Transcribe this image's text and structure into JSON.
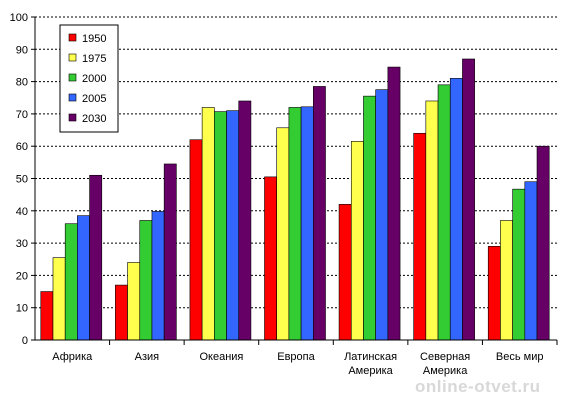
{
  "chart_data": {
    "type": "bar",
    "categories": [
      [
        "Африка"
      ],
      [
        "Азия"
      ],
      [
        "Океания"
      ],
      [
        "Европа"
      ],
      [
        "Латинская",
        "Америка"
      ],
      [
        "Северная",
        "Америка"
      ],
      [
        "Весь мир"
      ]
    ],
    "series": [
      {
        "name": "1950",
        "color": "#ff0000",
        "values": [
          15,
          17,
          62,
          50.5,
          42,
          64,
          29
        ]
      },
      {
        "name": "1975",
        "color": "#ffff4d",
        "values": [
          25.5,
          24,
          72,
          65.7,
          61.5,
          74,
          37
        ]
      },
      {
        "name": "2000",
        "color": "#33cc33",
        "values": [
          36,
          37,
          70.7,
          72,
          75.5,
          79,
          46.7
        ]
      },
      {
        "name": "2005",
        "color": "#3366ff",
        "values": [
          38.5,
          39.8,
          71,
          72.2,
          77.5,
          81,
          49
        ]
      },
      {
        "name": "2030",
        "color": "#660066",
        "values": [
          51,
          54.5,
          74,
          78.5,
          84.5,
          87,
          60
        ]
      }
    ],
    "ylim": [
      0,
      100
    ],
    "yticks": [
      0,
      10,
      20,
      30,
      40,
      50,
      60,
      70,
      80,
      90,
      100
    ],
    "grid": true,
    "legend_position": "top-left"
  },
  "watermark": "online-otvet.ru"
}
